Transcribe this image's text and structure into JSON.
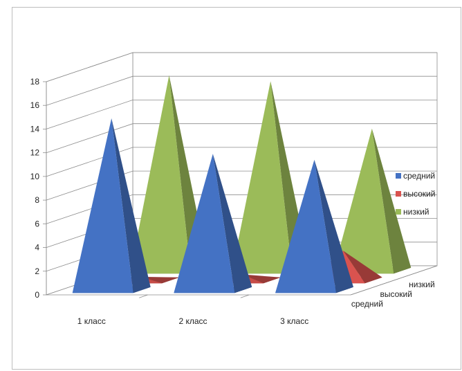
{
  "chart_data": {
    "type": "bar",
    "style": "3d-pyramid",
    "categories": [
      "1 класс",
      "2 класс",
      "3 класс"
    ],
    "series": [
      {
        "name": "средний",
        "values": [
          14.5,
          11.5,
          11
        ],
        "color": "#4472C4"
      },
      {
        "name": "высокий",
        "values": [
          0.3,
          0.5,
          2.5
        ],
        "color": "#D9534F"
      },
      {
        "name": "низкий",
        "values": [
          16.5,
          16,
          12
        ],
        "color": "#9BBB59"
      }
    ],
    "depth_labels": [
      "низкий",
      "высокий",
      "средний"
    ],
    "yticks": [
      "0",
      "2",
      "4",
      "6",
      "8",
      "10",
      "12",
      "14",
      "16",
      "18"
    ],
    "ylim": [
      0,
      18
    ],
    "grid": true,
    "legend": {
      "position": "right"
    },
    "title": "",
    "xlabel": "",
    "ylabel": ""
  }
}
